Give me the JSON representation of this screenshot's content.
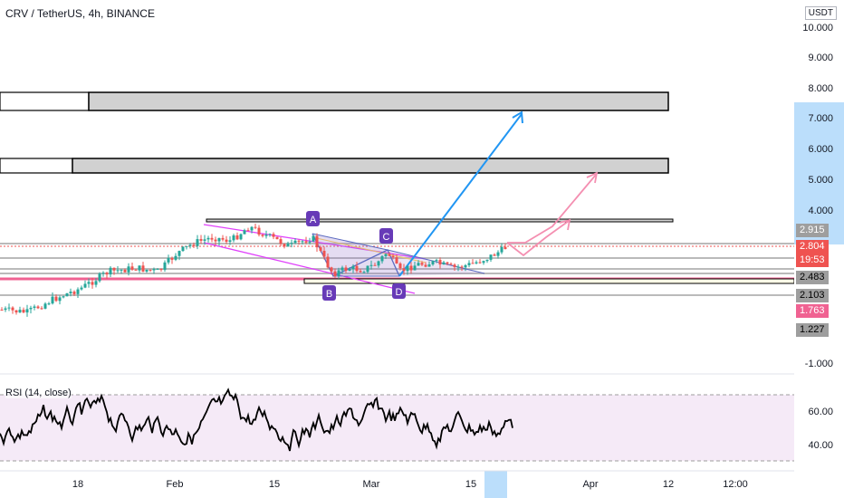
{
  "header": {
    "symbol_title": "CRV / TetherUS, 4h, BINANCE",
    "unit_label": "USDT"
  },
  "price_axis": {
    "ticks": [
      "10.000",
      "9.000",
      "8.000",
      "7.000",
      "6.000",
      "5.000",
      "4.000",
      "-1.000"
    ],
    "tags": {
      "level_high": "2.915",
      "last_price": "2.804",
      "countdown": "19:53",
      "level_mid": "2.483",
      "level_low": "2.103",
      "level_red": "1.763",
      "level_bottom": "1.227"
    }
  },
  "rsi_axis": {
    "ticks": [
      "60.00",
      "40.00"
    ]
  },
  "rsi_pane": {
    "label": "RSI (14, close)"
  },
  "time_axis": {
    "ticks": [
      "18",
      "Feb",
      "15",
      "Mar",
      "15",
      "Apr",
      "12",
      "12:00"
    ]
  },
  "pattern_points": {
    "a": "A",
    "b": "B",
    "c": "C",
    "d": "D"
  },
  "colors": {
    "bull": "#26a69a",
    "bear": "#ef5350",
    "magenta": "#e040fb",
    "blue": "#2196f3",
    "pink": "#f48fb1",
    "purple_label": "#673ab7",
    "rsi_band": "#f3e5f5",
    "axis_highlight": "#bbdefb"
  },
  "chart_data": {
    "type": "line",
    "series": [
      {
        "x": [
          "18",
          "Feb",
          "15",
          "Mar",
          "15"
        ],
        "values": [
          1.6,
          2.2,
          3.0,
          2.4,
          2.8
        ]
      }
    ]
  }
}
